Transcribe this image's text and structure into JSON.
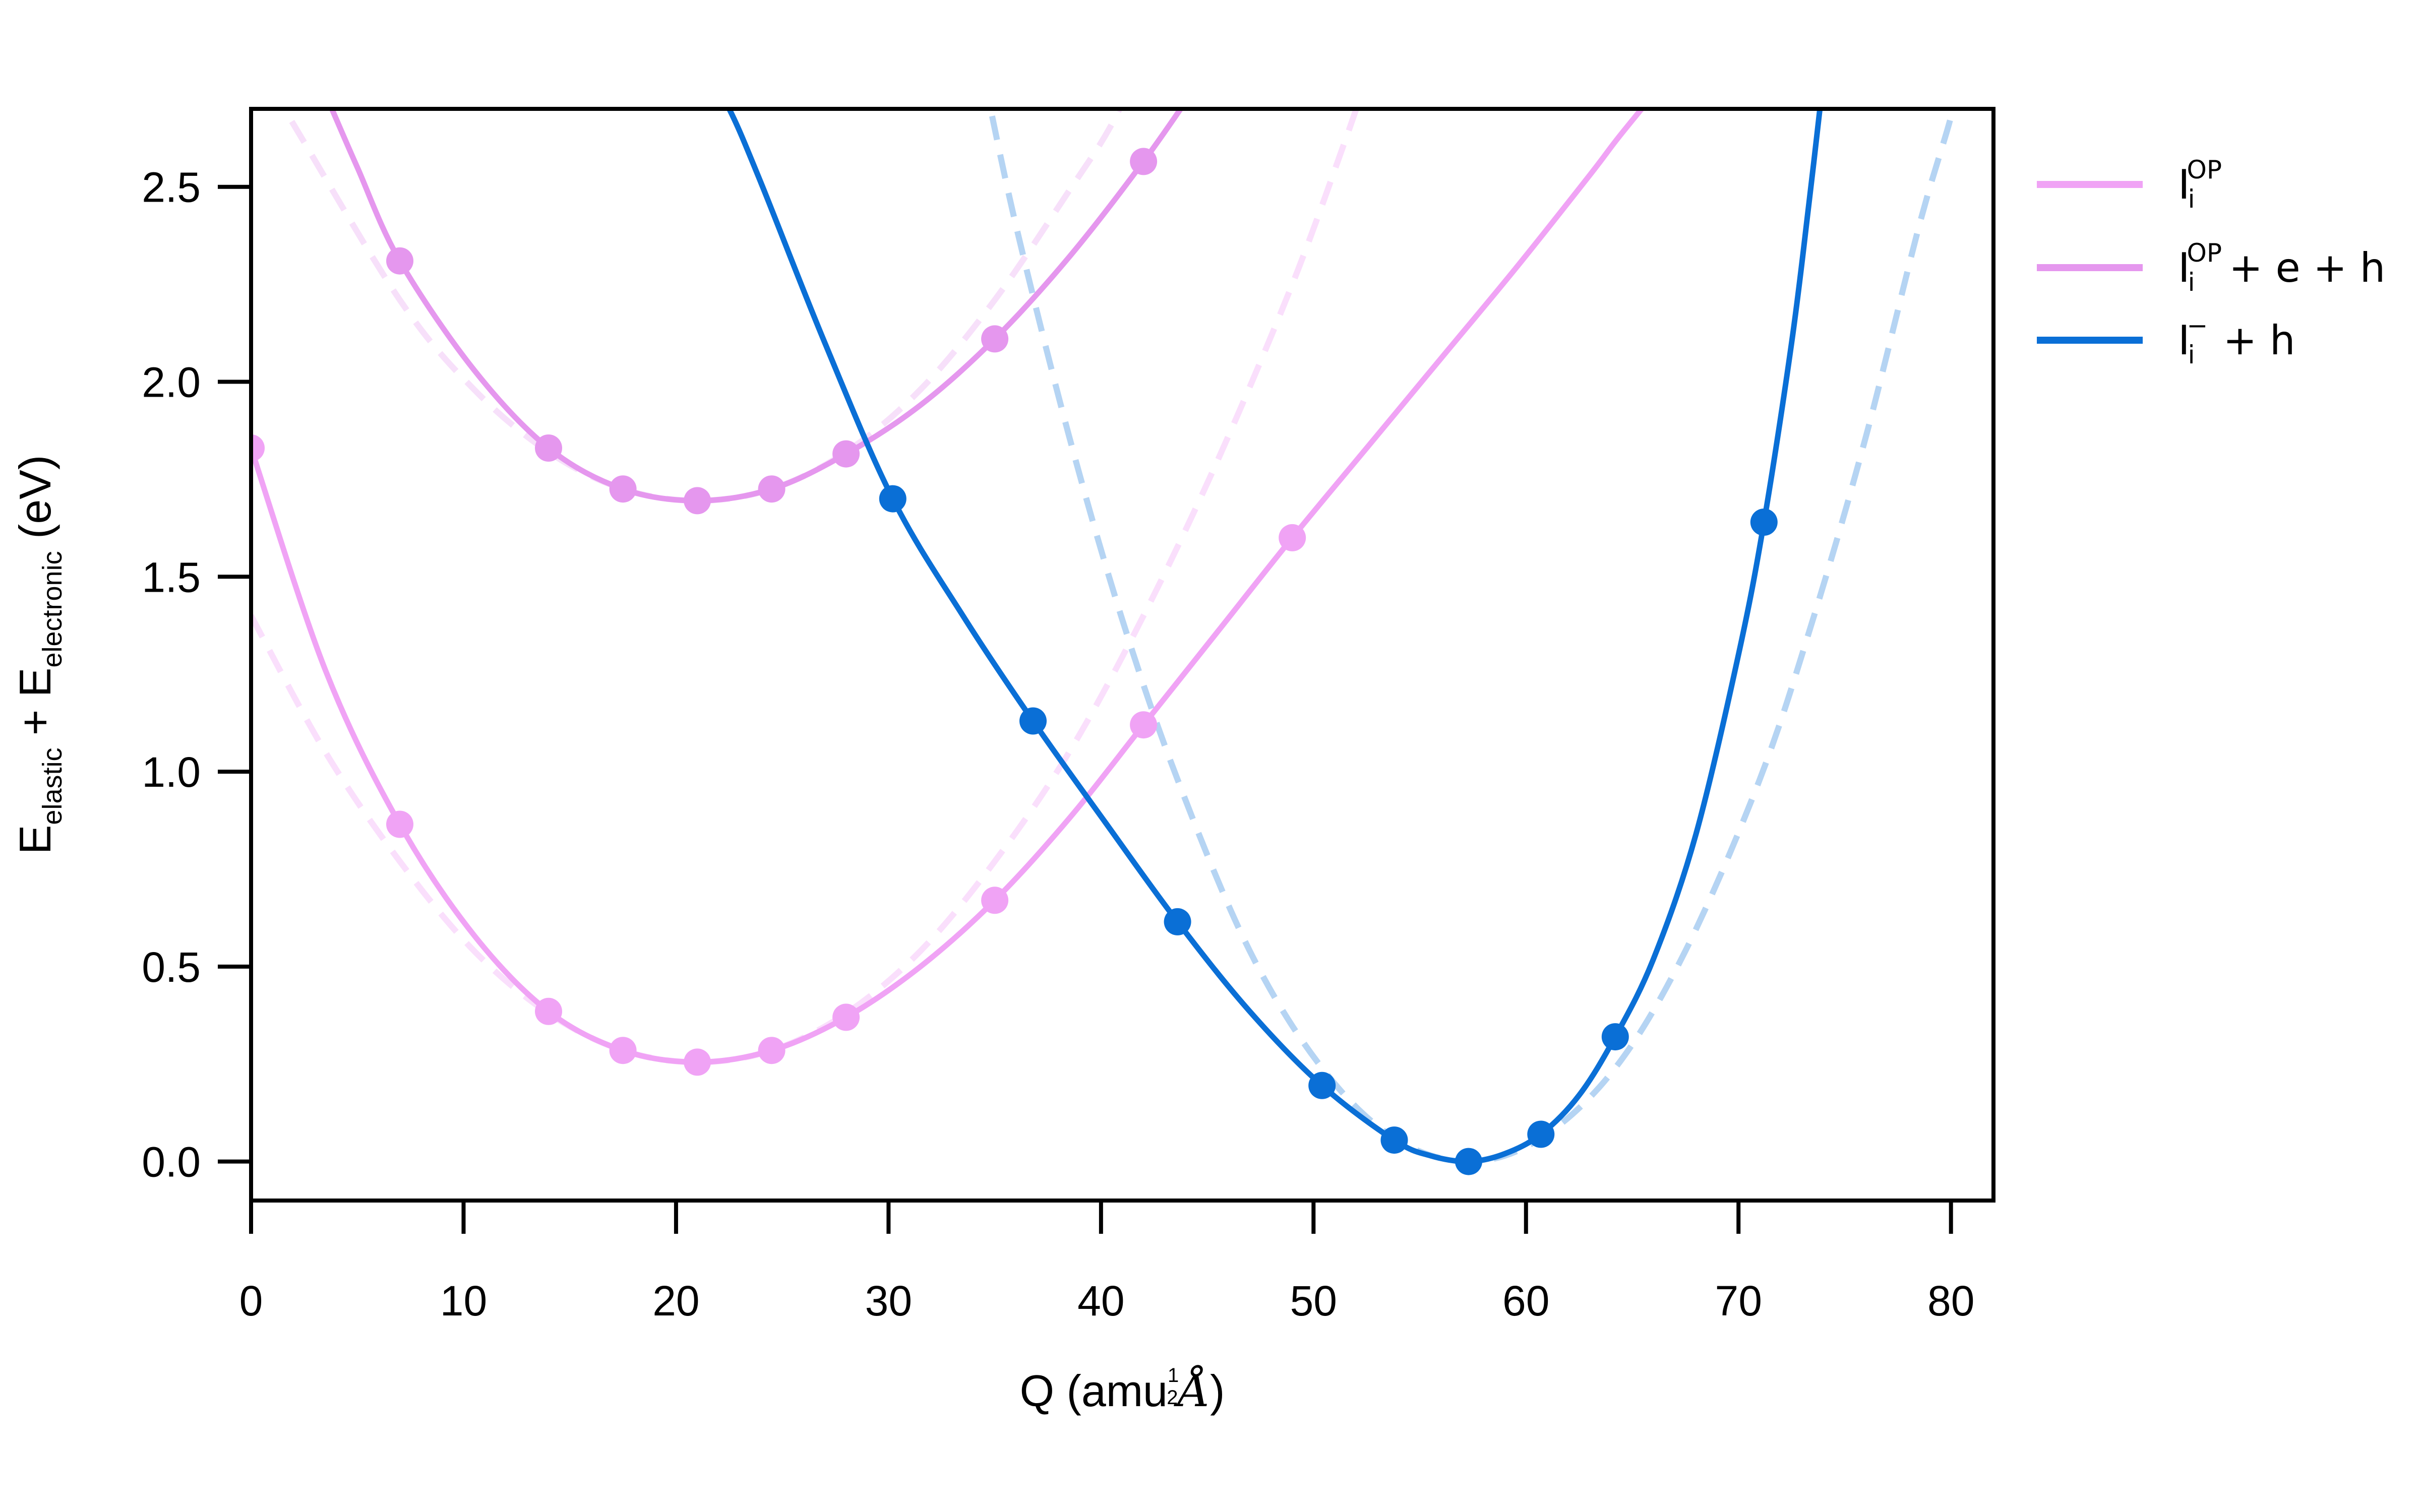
{
  "chart_data": {
    "type": "line",
    "xlabel": "Q (amu½Å)",
    "xlabel_parts": {
      "pre": "Q (amu",
      "power_num": "1",
      "power_den": "2",
      "unit": "Å",
      "post": ")"
    },
    "ylabel": "E_elastic + E_electronic (eV)",
    "ylabel_parts": {
      "e1": "E",
      "sub1": "elastic",
      "plus": " + ",
      "e2": "E",
      "sub2": "electronic",
      "post": "  (eV)"
    },
    "xlim": [
      0,
      82
    ],
    "ylim": [
      -0.1,
      2.7
    ],
    "x_ticks": [
      0,
      10,
      20,
      30,
      40,
      50,
      60,
      70,
      80
    ],
    "x_tick_labels": [
      "0",
      "10",
      "20",
      "30",
      "40",
      "50",
      "60",
      "70",
      "80"
    ],
    "y_ticks": [
      0.0,
      0.5,
      1.0,
      1.5,
      2.0,
      2.5
    ],
    "y_tick_labels": [
      "0.0",
      "0.5",
      "1.0",
      "1.5",
      "2.0",
      "2.5"
    ],
    "grid": false,
    "legend_position": "outside-right-top",
    "legend": [
      {
        "label": "I_i^OP",
        "main": "I",
        "sub": "i",
        "sup": "OP",
        "rest": "",
        "color": "#f0a3f5"
      },
      {
        "label": "I_i^OP + e + h",
        "main": "I",
        "sub": "i",
        "sup": "OP",
        "rest": "+ e + h",
        "color": "#e597ee"
      },
      {
        "label": "I_i^- + h",
        "main": "I",
        "sub": "i",
        "sup": "−",
        "rest": "+ h",
        "color": "#0a6fd6"
      }
    ],
    "series": [
      {
        "legend_index": 0,
        "color": "#f0a3f5",
        "points": [
          [
            0,
            1.83
          ],
          [
            7,
            0.865
          ],
          [
            14,
            0.385
          ],
          [
            17.5,
            0.285
          ],
          [
            21,
            0.255
          ],
          [
            24.5,
            0.285
          ],
          [
            28,
            0.37
          ],
          [
            35,
            0.67
          ],
          [
            42,
            1.12
          ],
          [
            49,
            1.6
          ]
        ],
        "fit_curve": [
          [
            0,
            1.83
          ],
          [
            3.5,
            1.26
          ],
          [
            7,
            0.865
          ],
          [
            10.5,
            0.58
          ],
          [
            14,
            0.385
          ],
          [
            17.5,
            0.285
          ],
          [
            21,
            0.255
          ],
          [
            24.5,
            0.285
          ],
          [
            28,
            0.37
          ],
          [
            31.5,
            0.5
          ],
          [
            35,
            0.67
          ],
          [
            38.5,
            0.88
          ],
          [
            42,
            1.12
          ],
          [
            45.5,
            1.36
          ],
          [
            49,
            1.6
          ],
          [
            52.5,
            1.83
          ],
          [
            56,
            2.06
          ],
          [
            59.5,
            2.29
          ],
          [
            63,
            2.53
          ],
          [
            64.4,
            2.63
          ],
          [
            66.5,
            2.77
          ]
        ],
        "harmonic_curve": [
          [
            0,
            1.4
          ],
          [
            3.5,
            1.05
          ],
          [
            7,
            0.77
          ],
          [
            10.5,
            0.54
          ],
          [
            14,
            0.38
          ],
          [
            17.5,
            0.285
          ],
          [
            21,
            0.255
          ],
          [
            24.5,
            0.285
          ],
          [
            28,
            0.38
          ],
          [
            31.5,
            0.54
          ],
          [
            35,
            0.77
          ],
          [
            38.5,
            1.05
          ],
          [
            42,
            1.4
          ],
          [
            45.5,
            1.8
          ],
          [
            49,
            2.25
          ],
          [
            51.5,
            2.62
          ],
          [
            52.5,
            2.78
          ]
        ]
      },
      {
        "legend_index": 1,
        "color": "#e597ee",
        "points": [
          [
            7,
            2.31
          ],
          [
            14,
            1.83
          ],
          [
            17.5,
            1.725
          ],
          [
            21,
            1.695
          ],
          [
            24.5,
            1.725
          ],
          [
            28,
            1.815
          ],
          [
            35,
            2.11
          ],
          [
            42,
            2.565
          ]
        ],
        "fit_curve": [
          [
            3.8,
            2.7
          ],
          [
            5,
            2.55
          ],
          [
            7,
            2.31
          ],
          [
            10.5,
            2.03
          ],
          [
            14,
            1.83
          ],
          [
            17.5,
            1.725
          ],
          [
            21,
            1.695
          ],
          [
            24.5,
            1.725
          ],
          [
            28,
            1.815
          ],
          [
            31.5,
            1.94
          ],
          [
            35,
            2.11
          ],
          [
            38.5,
            2.32
          ],
          [
            42,
            2.565
          ],
          [
            44.5,
            2.76
          ]
        ],
        "harmonic_curve": [
          [
            0,
            2.84
          ],
          [
            2,
            2.66
          ],
          [
            7,
            2.21
          ],
          [
            10.5,
            1.98
          ],
          [
            14,
            1.82
          ],
          [
            17.5,
            1.725
          ],
          [
            21,
            1.695
          ],
          [
            24.5,
            1.725
          ],
          [
            28,
            1.82
          ],
          [
            31.5,
            1.98
          ],
          [
            35,
            2.21
          ],
          [
            38.5,
            2.49
          ],
          [
            40.5,
            2.66
          ],
          [
            42,
            2.84
          ]
        ]
      },
      {
        "legend_index": 2,
        "color": "#0a6fd6",
        "points": [
          [
            30.2,
            1.7
          ],
          [
            36.8,
            1.13
          ],
          [
            43.6,
            0.615
          ],
          [
            50.4,
            0.195
          ],
          [
            53.8,
            0.055
          ],
          [
            57.3,
            0.0
          ],
          [
            60.7,
            0.07
          ],
          [
            64.2,
            0.32
          ],
          [
            71.2,
            1.64
          ]
        ],
        "fit_curve": [
          [
            21.5,
            2.78
          ],
          [
            22.5,
            2.7
          ],
          [
            24,
            2.51
          ],
          [
            27,
            2.1
          ],
          [
            30.2,
            1.7
          ],
          [
            33.5,
            1.4
          ],
          [
            36.8,
            1.13
          ],
          [
            40.2,
            0.87
          ],
          [
            43.6,
            0.615
          ],
          [
            47,
            0.385
          ],
          [
            50.4,
            0.195
          ],
          [
            53.8,
            0.055
          ],
          [
            55.5,
            0.015
          ],
          [
            57.3,
            0.0
          ],
          [
            59,
            0.02
          ],
          [
            60.7,
            0.07
          ],
          [
            62.5,
            0.17
          ],
          [
            64.2,
            0.32
          ],
          [
            66,
            0.52
          ],
          [
            68,
            0.84
          ],
          [
            70,
            1.3
          ],
          [
            71.2,
            1.64
          ],
          [
            72.5,
            2.1
          ],
          [
            73.3,
            2.45
          ],
          [
            74,
            2.78
          ]
        ],
        "harmonic_curve": [
          [
            34.5,
            2.78
          ],
          [
            36,
            2.4
          ],
          [
            38.5,
            1.86
          ],
          [
            41,
            1.39
          ],
          [
            43.6,
            0.98
          ],
          [
            47,
            0.54
          ],
          [
            50.4,
            0.24
          ],
          [
            53.8,
            0.06
          ],
          [
            57.3,
            0.0
          ],
          [
            60.7,
            0.06
          ],
          [
            64.2,
            0.24
          ],
          [
            67.5,
            0.54
          ],
          [
            71,
            0.98
          ],
          [
            73.5,
            1.39
          ],
          [
            76,
            1.86
          ],
          [
            78.5,
            2.4
          ],
          [
            80,
            2.68
          ],
          [
            80.3,
            2.78
          ]
        ]
      }
    ]
  }
}
